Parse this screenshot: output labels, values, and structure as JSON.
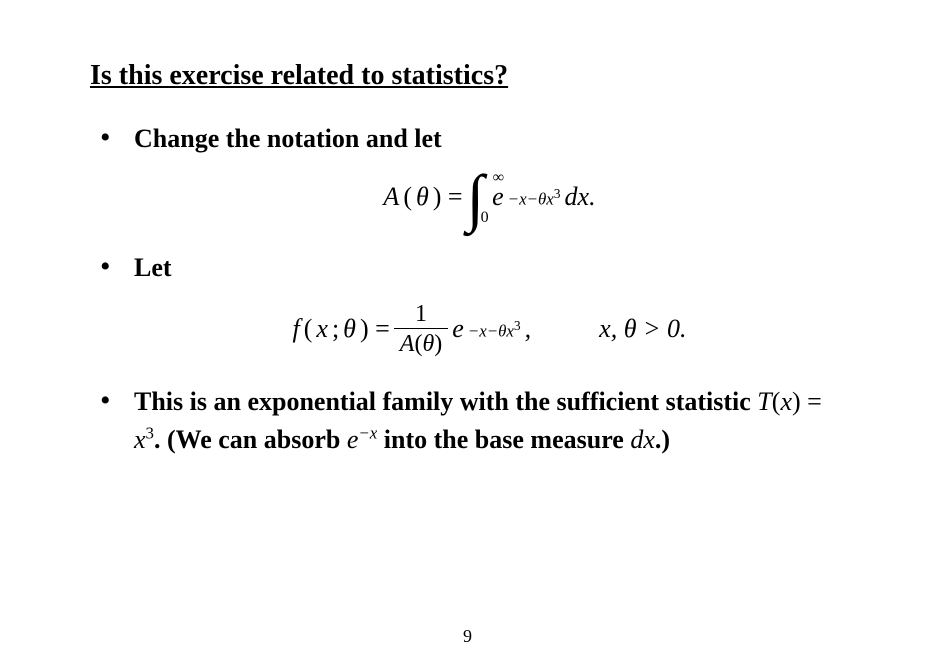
{
  "title": "Is this exercise related to statistics?",
  "bullets": {
    "b1_lead": "Change the notation and let",
    "b2_lead": "Let",
    "b3_part1": "This is an exponential family with the sufficient statistic ",
    "b3_tx": "T",
    "b3_paren_open": "(",
    "b3_x": "x",
    "b3_paren_close_eq": ") = ",
    "b3_x2": "x",
    "b3_cube": "3",
    "b3_part2": ". (We can absorb ",
    "b3_e": "e",
    "b3_negx": "−x",
    "b3_part3": " into the base measure ",
    "b3_dx": "dx",
    "b3_part4": ".)"
  },
  "eq1": {
    "A": "A",
    "open": "(",
    "theta": "θ",
    "close_eq": ") = ",
    "int_upper": "∞",
    "int_lower": "0",
    "e": "e",
    "exp": "−x−θx",
    "exp_cube": "3",
    "dx": "dx.",
    "int_sign": "∫"
  },
  "eq2": {
    "f": "f",
    "open": "(",
    "x": "x",
    "sep": "; ",
    "theta": "θ",
    "close_eq": ") = ",
    "num": "1",
    "denA": "A",
    "den_open": "(",
    "den_theta": "θ",
    "den_close": ")",
    "e": "e",
    "exp": "−x−θx",
    "exp_cube": "3",
    "comma": ",",
    "cond": "x, θ > 0."
  },
  "pagenum": "9"
}
